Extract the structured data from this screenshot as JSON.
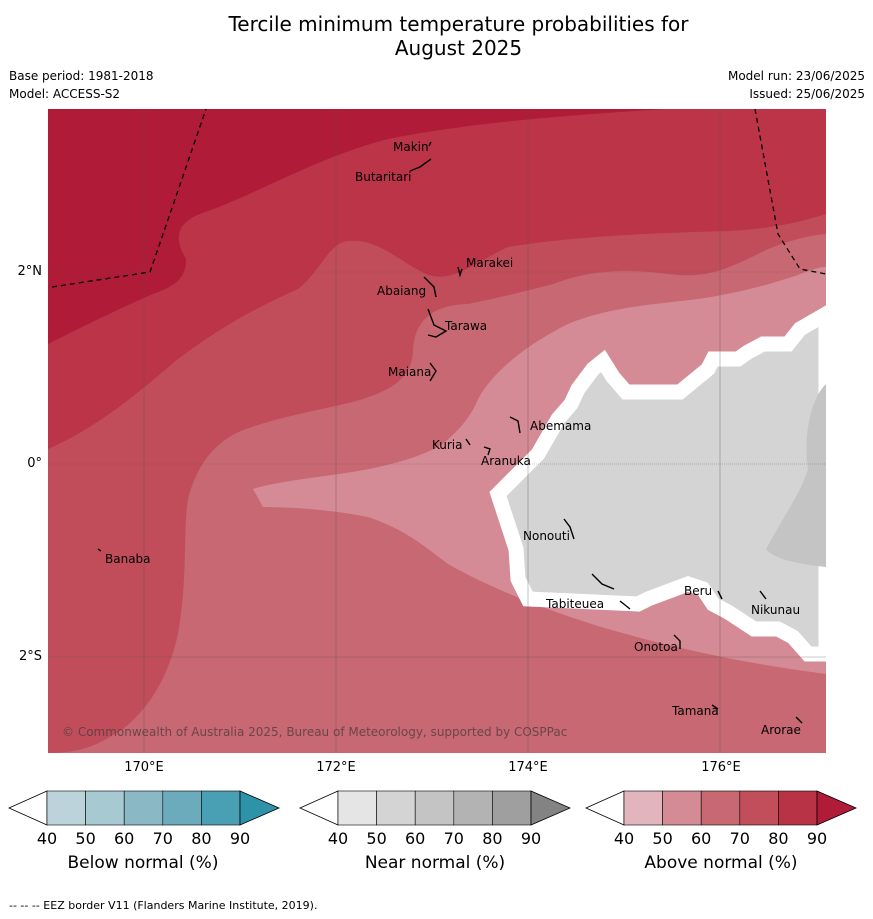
{
  "header": {
    "title_line1": "Tercile minimum temperature probabilities for",
    "title_line2": "August 2025",
    "base_period": "Base period: 1981-2018",
    "model": "Model: ACCESS-S2",
    "model_run": "Model run: 23/06/2025",
    "issued": "Issued: 25/06/2025"
  },
  "map": {
    "copyright": "© Commonwealth of Australia 2025, Bureau of Meteorology, supported by COSPPac",
    "lon_labels": [
      "170°E",
      "172°E",
      "174°E",
      "176°E"
    ],
    "lat_labels": [
      "2°N",
      "0°",
      "2°S"
    ],
    "islands": [
      "Makin",
      "Butaritari",
      "Marakei",
      "Abaiang",
      "Tarawa",
      "Maiana",
      "Abemama",
      "Kuria",
      "Aranuka",
      "Banaba",
      "Nonouti",
      "Tabiteuea",
      "Beru",
      "Nikunau",
      "Onotoa",
      "Tamana",
      "Arorae"
    ]
  },
  "legend": {
    "ticks": [
      "40",
      "50",
      "60",
      "70",
      "80",
      "90"
    ],
    "below": {
      "label": "Below normal (%)",
      "colors": [
        "#bcd3dc",
        "#a7c9d1",
        "#8ab9c5",
        "#6cabbc",
        "#49a0b4",
        "#2e93a8"
      ]
    },
    "near": {
      "label": "Near normal (%)",
      "colors": [
        "#e5e5e5",
        "#d4d4d4",
        "#c4c4c4",
        "#b3b3b3",
        "#9f9f9f",
        "#838383"
      ]
    },
    "above": {
      "label": "Above normal (%)",
      "colors": [
        "#e2b5be",
        "#d58b95",
        "#c86872",
        "#c24e5c",
        "#b93347",
        "#b01b37"
      ]
    }
  },
  "footnote": "-- -- -- EEZ border V11 (Flanders Marine Institute, 2019)."
}
